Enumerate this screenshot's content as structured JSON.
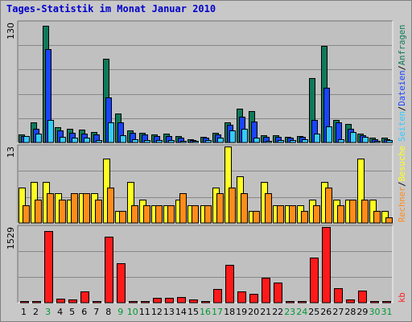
{
  "title": "Tages-Statistik im Monat Januar 2010",
  "colors": {
    "anfragen": "#0f7a5a",
    "dateien": "#1a44ff",
    "seiten": "#33ccff",
    "besuche": "#ffff22",
    "rechner": "#ff8c1a",
    "kb": "#ff1a1a",
    "weekend_label": "#009933",
    "weekday_label": "#000000",
    "right_sep": "#000000"
  },
  "right_labels": {
    "anfragen": "Anfragen",
    "dateien": "Dateien",
    "seiten": "Seiten",
    "besuche": "Besuche",
    "rechner": "Rechner",
    "kb": "kb",
    "sep": "/"
  },
  "chart_data": [
    {
      "type": "bar",
      "panel": "top",
      "ymax_label": "130",
      "ylim": [
        0,
        130
      ],
      "categories": [
        "1",
        "2",
        "3",
        "4",
        "5",
        "6",
        "7",
        "8",
        "9",
        "10",
        "11",
        "12",
        "13",
        "14",
        "15",
        "16",
        "17",
        "18",
        "19",
        "20",
        "21",
        "22",
        "23",
        "24",
        "25",
        "26",
        "27",
        "28",
        "29",
        "30",
        "31"
      ],
      "weekend_days": [
        "3",
        "9",
        "10",
        "16",
        "17",
        "23",
        "24",
        "30",
        "31"
      ],
      "series": [
        {
          "name": "Anfragen",
          "color_key": "anfragen",
          "values": [
            9,
            22,
            130,
            17,
            15,
            14,
            12,
            93,
            32,
            13,
            11,
            9,
            10,
            7,
            4,
            6,
            11,
            22,
            38,
            35,
            8,
            8,
            6,
            7,
            72,
            108,
            25,
            21,
            10,
            5,
            5
          ]
        },
        {
          "name": "Dateien",
          "color_key": "dateien",
          "values": [
            7,
            15,
            104,
            13,
            11,
            10,
            9,
            50,
            22,
            11,
            9,
            7,
            7,
            5,
            3,
            5,
            9,
            20,
            29,
            23,
            6,
            6,
            5,
            6,
            25,
            61,
            22,
            15,
            8,
            4,
            4
          ]
        },
        {
          "name": "Seiten",
          "color_key": "seiten",
          "values": [
            7,
            10,
            25,
            6,
            5,
            5,
            3,
            22,
            8,
            4,
            3,
            3,
            3,
            2,
            2,
            3,
            5,
            13,
            15,
            5,
            2,
            3,
            3,
            4,
            10,
            18,
            4,
            12,
            6,
            2,
            3
          ]
        }
      ]
    },
    {
      "type": "bar",
      "panel": "middle",
      "ymax_label": "13",
      "ylim": [
        0,
        13
      ],
      "categories": [
        "1",
        "2",
        "3",
        "4",
        "5",
        "6",
        "7",
        "8",
        "9",
        "10",
        "11",
        "12",
        "13",
        "14",
        "15",
        "16",
        "17",
        "18",
        "19",
        "20",
        "21",
        "22",
        "23",
        "24",
        "25",
        "26",
        "27",
        "28",
        "29",
        "30",
        "31"
      ],
      "series": [
        {
          "name": "Besuche",
          "color_key": "besuche",
          "values": [
            6,
            7,
            7,
            5,
            4,
            5,
            5,
            11,
            2,
            7,
            4,
            3,
            3,
            4,
            3,
            3,
            6,
            13,
            8,
            2,
            7,
            3,
            3,
            3,
            4,
            7,
            4,
            4,
            11,
            4,
            2
          ]
        },
        {
          "name": "Rechner",
          "color_key": "rechner",
          "values": [
            3,
            4,
            5,
            4,
            5,
            5,
            4,
            6,
            2,
            3,
            3,
            3,
            3,
            5,
            3,
            3,
            5,
            6,
            5,
            2,
            5,
            3,
            3,
            2,
            3,
            6,
            3,
            4,
            4,
            2,
            1
          ]
        }
      ]
    },
    {
      "type": "bar",
      "panel": "bottom",
      "ymax_label": "1529",
      "ylim": [
        0,
        1529
      ],
      "categories": [
        "1",
        "2",
        "3",
        "4",
        "5",
        "6",
        "7",
        "8",
        "9",
        "10",
        "11",
        "12",
        "13",
        "14",
        "15",
        "16",
        "17",
        "18",
        "19",
        "20",
        "21",
        "22",
        "23",
        "24",
        "25",
        "26",
        "27",
        "28",
        "29",
        "30",
        "31"
      ],
      "series": [
        {
          "name": "kb",
          "color_key": "kb",
          "values": [
            40,
            40,
            1450,
            80,
            60,
            220,
            40,
            1340,
            790,
            40,
            40,
            90,
            90,
            120,
            60,
            40,
            270,
            770,
            220,
            180,
            500,
            400,
            40,
            40,
            910,
            1529,
            290,
            60,
            240,
            30,
            30
          ]
        }
      ]
    }
  ]
}
